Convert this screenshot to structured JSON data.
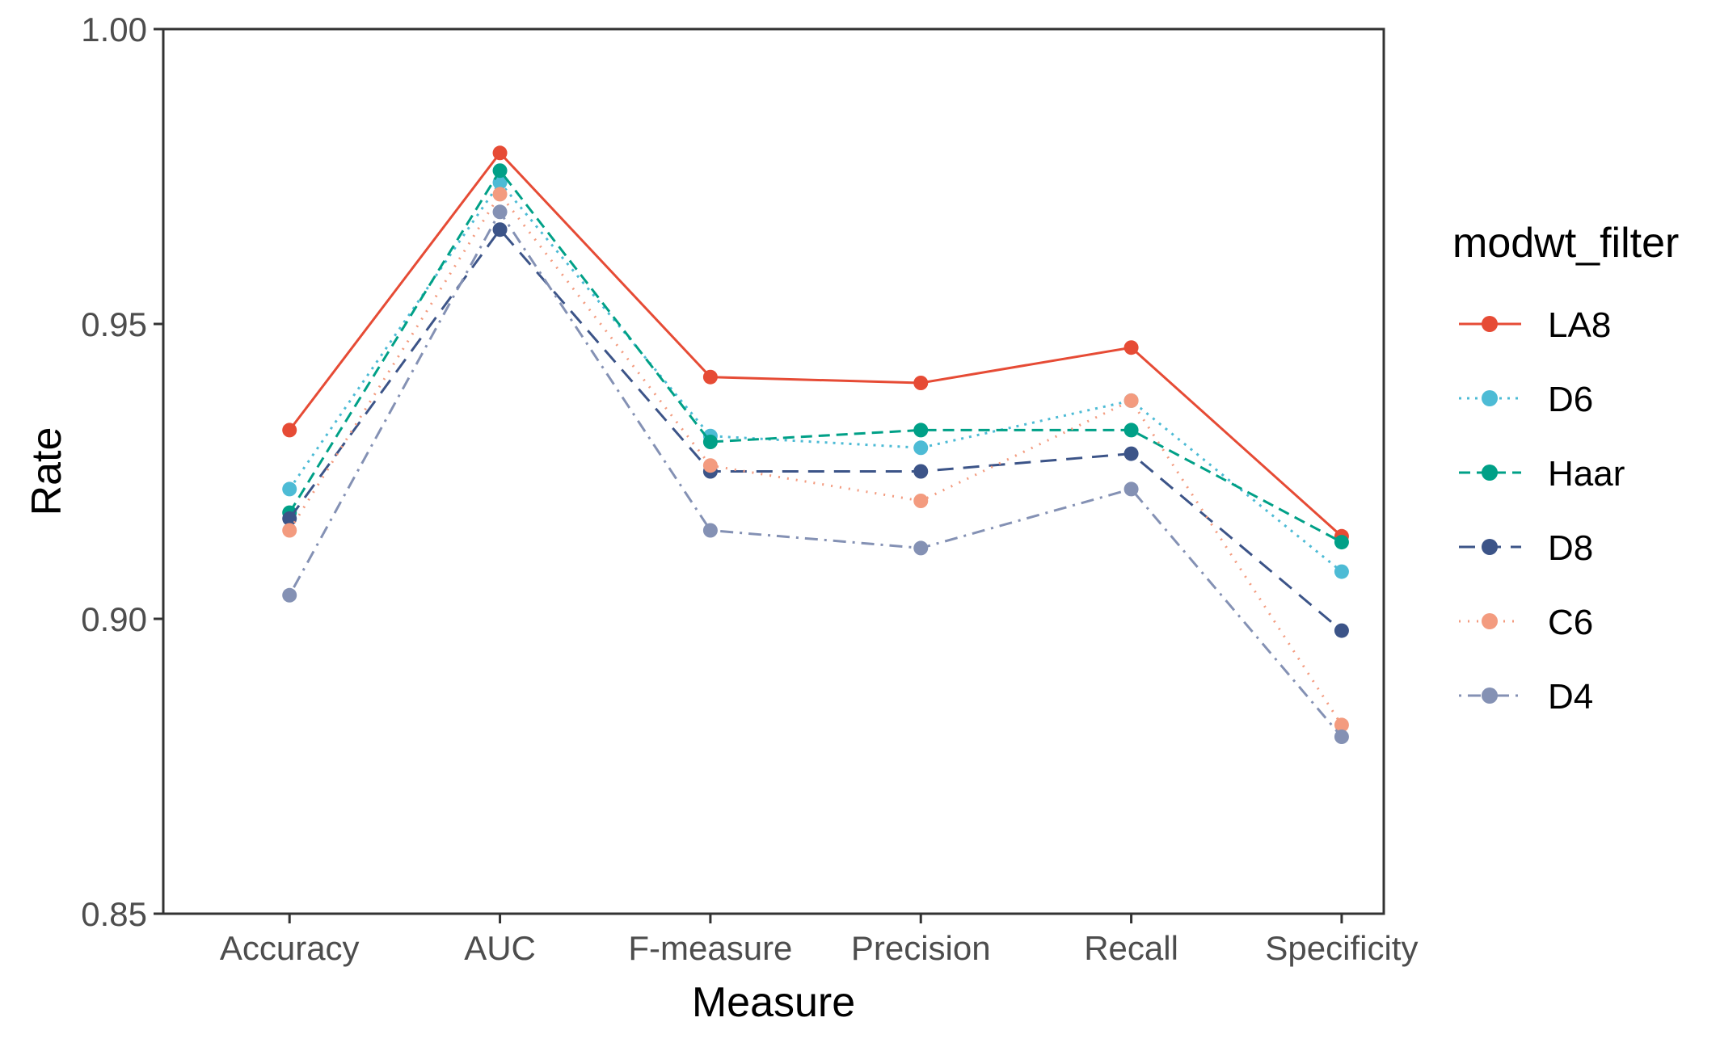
{
  "chart_data": {
    "type": "line",
    "title": "",
    "xlabel": "Measure",
    "ylabel": "Rate",
    "categories": [
      "Accuracy",
      "AUC",
      "F-measure",
      "Precision",
      "Recall",
      "Specificity"
    ],
    "ylim": [
      0.85,
      1.0
    ],
    "yticks": [
      "0.85",
      "0.90",
      "0.95",
      "1.00"
    ],
    "ytick_values": [
      0.85,
      0.9,
      0.95,
      1.0
    ],
    "grid": false,
    "legend_title": "modwt_filter",
    "legend_position": "right",
    "series": [
      {
        "name": "LA8",
        "color": "#E64B35",
        "dash": "solid",
        "values": [
          0.932,
          0.979,
          0.941,
          0.94,
          0.946,
          0.914
        ]
      },
      {
        "name": "D6",
        "color": "#4DBBD5",
        "dash": "dotted",
        "values": [
          0.922,
          0.974,
          0.931,
          0.929,
          0.937,
          0.908
        ]
      },
      {
        "name": "Haar",
        "color": "#00A087",
        "dash": "dashed",
        "values": [
          0.918,
          0.976,
          0.93,
          0.932,
          0.932,
          0.913
        ]
      },
      {
        "name": "D8",
        "color": "#3C5488",
        "dash": "longdash",
        "values": [
          0.917,
          0.966,
          0.925,
          0.925,
          0.928,
          0.898
        ]
      },
      {
        "name": "C6",
        "color": "#F39B7F",
        "dash": "dotted2",
        "values": [
          0.915,
          0.972,
          0.926,
          0.92,
          0.937,
          0.882
        ]
      },
      {
        "name": "D4",
        "color": "#8491B4",
        "dash": "dotdash",
        "values": [
          0.904,
          0.969,
          0.915,
          0.912,
          0.922,
          0.88
        ]
      }
    ]
  }
}
